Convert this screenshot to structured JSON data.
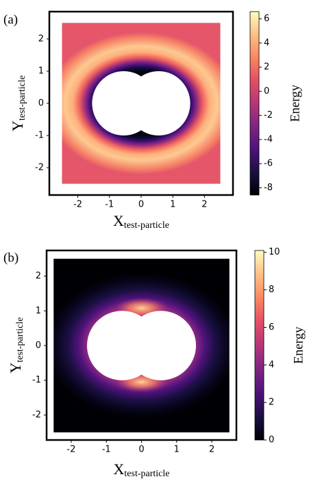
{
  "chart_data": [
    {
      "type": "heatmap",
      "panel_label": "(a)",
      "xlabel": {
        "text": "X",
        "sub": "test-particle"
      },
      "ylabel": {
        "text": "Y",
        "sub": "test-particle"
      },
      "colorbar_label": "Energy",
      "xlim": [
        -2.9,
        2.9
      ],
      "ylim": [
        -2.85,
        2.85
      ],
      "xticks": [
        -2,
        -1,
        0,
        1,
        2
      ],
      "yticks": [
        -2,
        -1,
        0,
        1,
        2
      ],
      "extent": [
        -2.5,
        2.5
      ],
      "particles": [
        {
          "x": -0.55,
          "y": 0,
          "r": 1
        },
        {
          "x": 0.55,
          "y": 0,
          "r": 1
        }
      ],
      "clim": [
        -8.6,
        6.6
      ],
      "cticks": [
        -8,
        -6,
        -4,
        -2,
        0,
        2,
        4,
        6
      ],
      "colormap": "magma"
    },
    {
      "type": "heatmap",
      "panel_label": "(b)",
      "xlabel": {
        "text": "X",
        "sub": "test-particle"
      },
      "ylabel": {
        "text": "Y",
        "sub": "test-particle"
      },
      "colorbar_label": "Energy",
      "xlim": [
        -2.7,
        2.7
      ],
      "ylim": [
        -2.72,
        2.74
      ],
      "xticks": [
        -2,
        -1,
        0,
        1,
        2
      ],
      "yticks": [
        -2,
        -1,
        0,
        1,
        2
      ],
      "extent": [
        -2.5,
        2.5
      ],
      "particles": [
        {
          "x": -0.55,
          "y": 0,
          "r": 1
        },
        {
          "x": 0.55,
          "y": 0,
          "r": 1
        }
      ],
      "clim": [
        0,
        10.1
      ],
      "cticks": [
        0,
        2,
        4,
        6,
        8,
        10
      ],
      "colormap": "magma"
    }
  ]
}
